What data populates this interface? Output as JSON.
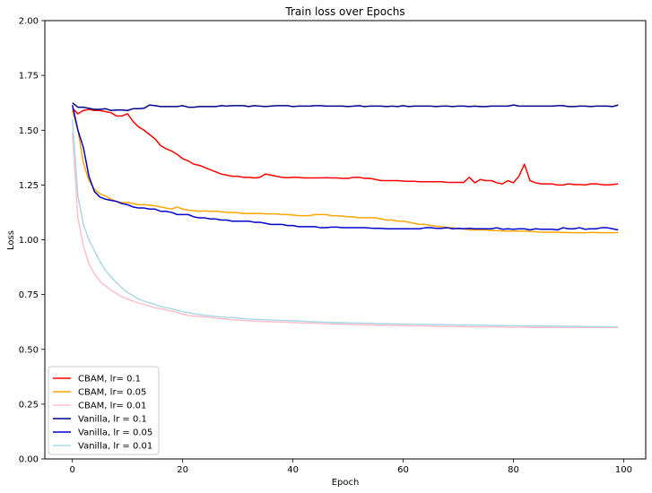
{
  "chart_data": {
    "type": "line",
    "title": "Train loss over Epochs",
    "xlabel": "Epoch",
    "ylabel": "Loss",
    "xlim": [
      -5,
      104
    ],
    "ylim": [
      0.0,
      2.0
    ],
    "xticks": [
      0,
      20,
      40,
      60,
      80,
      100
    ],
    "xtick_labels": [
      "0",
      "20",
      "40",
      "60",
      "80",
      "100"
    ],
    "yticks": [
      0.0,
      0.25,
      0.5,
      0.75,
      1.0,
      1.25,
      1.5,
      1.75,
      2.0
    ],
    "ytick_labels": [
      "0.00",
      "0.25",
      "0.50",
      "0.75",
      "1.00",
      "1.25",
      "1.50",
      "1.75",
      "2.00"
    ],
    "grid": false,
    "legend_position": "lower-left",
    "x": [
      0,
      1,
      2,
      3,
      4,
      5,
      6,
      7,
      8,
      9,
      10,
      11,
      12,
      13,
      14,
      15,
      16,
      17,
      18,
      19,
      20,
      21,
      22,
      23,
      24,
      25,
      26,
      27,
      28,
      29,
      30,
      31,
      32,
      33,
      34,
      35,
      36,
      37,
      38,
      39,
      40,
      41,
      42,
      43,
      44,
      45,
      46,
      47,
      48,
      49,
      50,
      51,
      52,
      53,
      54,
      55,
      56,
      57,
      58,
      59,
      60,
      61,
      62,
      63,
      64,
      65,
      66,
      67,
      68,
      69,
      70,
      71,
      72,
      73,
      74,
      75,
      76,
      77,
      78,
      79,
      80,
      81,
      82,
      83,
      84,
      85,
      86,
      87,
      88,
      89,
      90,
      91,
      92,
      93,
      94,
      95,
      96,
      97,
      98,
      99
    ],
    "series": [
      {
        "name": "CBAM, lr= 0.1",
        "color": "#ff0000",
        "values": [
          1.6,
          1.575,
          1.59,
          1.595,
          1.59,
          1.59,
          1.585,
          1.58,
          1.565,
          1.565,
          1.575,
          1.54,
          1.515,
          1.5,
          1.48,
          1.46,
          1.43,
          1.415,
          1.405,
          1.39,
          1.37,
          1.36,
          1.345,
          1.34,
          1.33,
          1.32,
          1.31,
          1.3,
          1.295,
          1.29,
          1.29,
          1.285,
          1.285,
          1.282,
          1.285,
          1.3,
          1.295,
          1.29,
          1.285,
          1.283,
          1.285,
          1.285,
          1.282,
          1.282,
          1.282,
          1.282,
          1.283,
          1.282,
          1.282,
          1.28,
          1.28,
          1.285,
          1.285,
          1.28,
          1.28,
          1.275,
          1.27,
          1.27,
          1.27,
          1.27,
          1.268,
          1.267,
          1.267,
          1.265,
          1.265,
          1.265,
          1.265,
          1.265,
          1.262,
          1.262,
          1.262,
          1.262,
          1.285,
          1.26,
          1.275,
          1.27,
          1.27,
          1.26,
          1.255,
          1.27,
          1.26,
          1.29,
          1.345,
          1.27,
          1.26,
          1.255,
          1.255,
          1.255,
          1.25,
          1.25,
          1.255,
          1.252,
          1.252,
          1.25,
          1.255,
          1.255,
          1.252,
          1.25,
          1.252,
          1.255
        ]
      },
      {
        "name": "CBAM, lr= 0.05",
        "color": "#ffa500",
        "values": [
          1.59,
          1.5,
          1.35,
          1.27,
          1.23,
          1.21,
          1.2,
          1.185,
          1.175,
          1.17,
          1.17,
          1.165,
          1.16,
          1.16,
          1.158,
          1.155,
          1.15,
          1.145,
          1.14,
          1.15,
          1.14,
          1.135,
          1.133,
          1.13,
          1.132,
          1.13,
          1.13,
          1.128,
          1.125,
          1.125,
          1.123,
          1.12,
          1.12,
          1.12,
          1.12,
          1.118,
          1.118,
          1.118,
          1.115,
          1.115,
          1.113,
          1.11,
          1.11,
          1.11,
          1.115,
          1.115,
          1.115,
          1.11,
          1.11,
          1.108,
          1.105,
          1.105,
          1.1,
          1.1,
          1.1,
          1.1,
          1.095,
          1.09,
          1.09,
          1.085,
          1.085,
          1.08,
          1.075,
          1.07,
          1.07,
          1.065,
          1.062,
          1.06,
          1.055,
          1.055,
          1.05,
          1.05,
          1.045,
          1.045,
          1.045,
          1.045,
          1.042,
          1.042,
          1.04,
          1.04,
          1.04,
          1.04,
          1.04,
          1.038,
          1.037,
          1.035,
          1.035,
          1.035,
          1.035,
          1.033,
          1.033,
          1.032,
          1.032,
          1.032,
          1.033,
          1.033,
          1.032,
          1.032,
          1.032,
          1.033
        ]
      },
      {
        "name": "CBAM, lr= 0.01",
        "color": "#ffc0cb",
        "values": [
          1.49,
          1.1,
          0.97,
          0.89,
          0.845,
          0.81,
          0.79,
          0.77,
          0.755,
          0.74,
          0.73,
          0.72,
          0.712,
          0.705,
          0.698,
          0.69,
          0.685,
          0.68,
          0.675,
          0.668,
          0.66,
          0.655,
          0.652,
          0.65,
          0.648,
          0.645,
          0.642,
          0.64,
          0.638,
          0.635,
          0.634,
          0.632,
          0.63,
          0.63,
          0.628,
          0.627,
          0.626,
          0.625,
          0.624,
          0.623,
          0.622,
          0.621,
          0.62,
          0.62,
          0.619,
          0.618,
          0.617,
          0.616,
          0.616,
          0.615,
          0.614,
          0.613,
          0.613,
          0.612,
          0.612,
          0.611,
          0.61,
          0.61,
          0.609,
          0.609,
          0.608,
          0.608,
          0.607,
          0.607,
          0.607,
          0.606,
          0.606,
          0.605,
          0.605,
          0.605,
          0.604,
          0.604,
          0.603,
          0.603,
          0.603,
          0.603,
          0.602,
          0.602,
          0.602,
          0.601,
          0.601,
          0.601,
          0.601,
          0.6,
          0.6,
          0.6,
          0.6,
          0.6,
          0.6,
          0.6,
          0.6,
          0.6,
          0.6,
          0.6,
          0.6,
          0.6,
          0.6,
          0.6,
          0.6,
          0.6
        ]
      },
      {
        "name": "Vanilla, lr = 0.1",
        "color": "#00008b",
        "values": [
          1.625,
          1.605,
          1.605,
          1.6,
          1.595,
          1.595,
          1.598,
          1.59,
          1.592,
          1.592,
          1.59,
          1.598,
          1.598,
          1.6,
          1.615,
          1.612,
          1.608,
          1.608,
          1.608,
          1.608,
          1.612,
          1.605,
          1.605,
          1.608,
          1.608,
          1.608,
          1.608,
          1.612,
          1.61,
          1.612,
          1.612,
          1.612,
          1.608,
          1.612,
          1.61,
          1.608,
          1.61,
          1.612,
          1.612,
          1.612,
          1.608,
          1.61,
          1.61,
          1.61,
          1.612,
          1.612,
          1.61,
          1.61,
          1.61,
          1.61,
          1.608,
          1.61,
          1.612,
          1.608,
          1.61,
          1.61,
          1.61,
          1.608,
          1.61,
          1.608,
          1.612,
          1.608,
          1.61,
          1.61,
          1.61,
          1.61,
          1.608,
          1.61,
          1.61,
          1.608,
          1.61,
          1.61,
          1.608,
          1.61,
          1.608,
          1.608,
          1.61,
          1.61,
          1.61,
          1.61,
          1.615,
          1.61,
          1.61,
          1.61,
          1.61,
          1.61,
          1.61,
          1.61,
          1.612,
          1.612,
          1.608,
          1.608,
          1.61,
          1.61,
          1.608,
          1.61,
          1.61,
          1.61,
          1.608,
          1.615
        ]
      },
      {
        "name": "Vanilla, lr = 0.05",
        "color": "#0000cd",
        "values": [
          1.615,
          1.5,
          1.42,
          1.29,
          1.22,
          1.195,
          1.185,
          1.18,
          1.175,
          1.165,
          1.16,
          1.15,
          1.145,
          1.145,
          1.14,
          1.14,
          1.13,
          1.13,
          1.125,
          1.115,
          1.115,
          1.115,
          1.105,
          1.1,
          1.1,
          1.095,
          1.095,
          1.09,
          1.09,
          1.085,
          1.085,
          1.085,
          1.085,
          1.08,
          1.08,
          1.075,
          1.07,
          1.07,
          1.07,
          1.065,
          1.065,
          1.06,
          1.06,
          1.06,
          1.06,
          1.055,
          1.055,
          1.058,
          1.058,
          1.055,
          1.055,
          1.055,
          1.055,
          1.055,
          1.053,
          1.052,
          1.052,
          1.05,
          1.05,
          1.05,
          1.05,
          1.05,
          1.05,
          1.05,
          1.055,
          1.055,
          1.052,
          1.052,
          1.055,
          1.05,
          1.052,
          1.05,
          1.052,
          1.05,
          1.05,
          1.05,
          1.05,
          1.055,
          1.048,
          1.05,
          1.048,
          1.05,
          1.05,
          1.045,
          1.05,
          1.048,
          1.048,
          1.048,
          1.045,
          1.055,
          1.05,
          1.05,
          1.055,
          1.048,
          1.05,
          1.05,
          1.055,
          1.055,
          1.05,
          1.045
        ]
      },
      {
        "name": "Vanilla, lr = 0.01",
        "color": "#add8e6",
        "values": [
          1.55,
          1.2,
          1.07,
          1.0,
          0.95,
          0.9,
          0.86,
          0.83,
          0.805,
          0.78,
          0.76,
          0.745,
          0.73,
          0.72,
          0.712,
          0.705,
          0.695,
          0.69,
          0.685,
          0.678,
          0.672,
          0.668,
          0.662,
          0.66,
          0.655,
          0.653,
          0.65,
          0.648,
          0.645,
          0.645,
          0.643,
          0.64,
          0.638,
          0.637,
          0.636,
          0.635,
          0.634,
          0.633,
          0.632,
          0.631,
          0.63,
          0.63,
          0.628,
          0.627,
          0.626,
          0.625,
          0.624,
          0.623,
          0.622,
          0.622,
          0.621,
          0.62,
          0.62,
          0.619,
          0.619,
          0.618,
          0.617,
          0.617,
          0.616,
          0.616,
          0.615,
          0.615,
          0.615,
          0.614,
          0.614,
          0.613,
          0.613,
          0.613,
          0.612,
          0.612,
          0.611,
          0.611,
          0.611,
          0.61,
          0.61,
          0.61,
          0.609,
          0.609,
          0.609,
          0.608,
          0.608,
          0.608,
          0.607,
          0.607,
          0.607,
          0.607,
          0.606,
          0.606,
          0.606,
          0.605,
          0.605,
          0.605,
          0.605,
          0.604,
          0.604,
          0.604,
          0.604,
          0.603,
          0.603,
          0.603
        ]
      }
    ]
  }
}
